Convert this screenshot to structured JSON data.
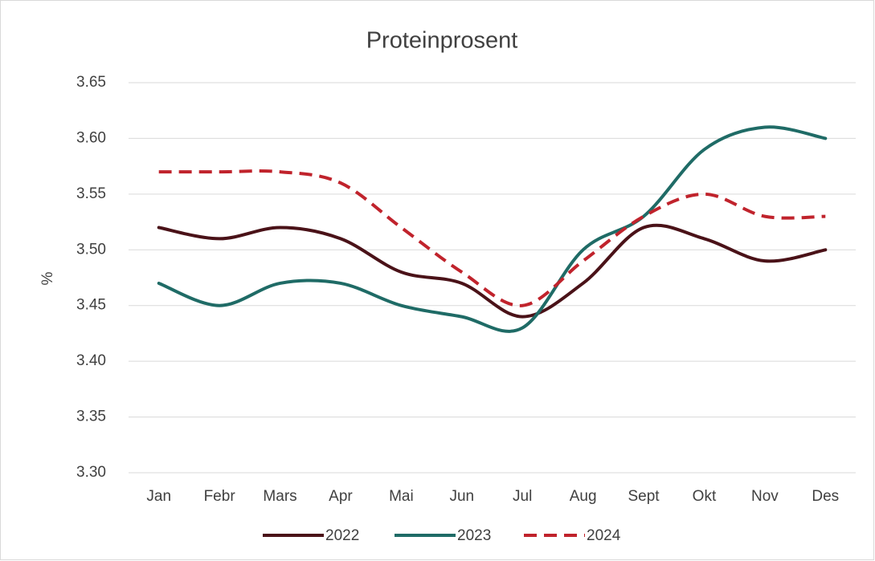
{
  "chart_data": {
    "type": "line",
    "title": "Proteinprosent",
    "y_label": "%",
    "categories": [
      "Jan",
      "Febr",
      "Mars",
      "Apr",
      "Mai",
      "Jun",
      "Jul",
      "Aug",
      "Sept",
      "Okt",
      "Nov",
      "Des"
    ],
    "series": [
      {
        "name": "2022",
        "color": "#4a1218",
        "dashed": false,
        "values": [
          3.52,
          3.51,
          3.52,
          3.51,
          3.48,
          3.47,
          3.44,
          3.47,
          3.52,
          3.51,
          3.49,
          3.5
        ]
      },
      {
        "name": "2023",
        "color": "#1f6b66",
        "dashed": false,
        "values": [
          3.47,
          3.45,
          3.47,
          3.47,
          3.45,
          3.44,
          3.43,
          3.5,
          3.53,
          3.59,
          3.61,
          3.6
        ]
      },
      {
        "name": "2024",
        "color": "#c0232c",
        "dashed": true,
        "values": [
          3.57,
          3.57,
          3.57,
          3.56,
          3.52,
          3.48,
          3.45,
          3.49,
          3.53,
          3.55,
          3.53,
          3.53
        ]
      }
    ],
    "ylim": [
      3.3,
      3.65
    ],
    "yticks": [
      {
        "value": 3.3,
        "label": "3.30"
      },
      3.35,
      {
        "value": 3.4,
        "label": "3.40"
      },
      3.45,
      {
        "value": 3.5,
        "label": "3.50"
      },
      3.55,
      {
        "value": 3.6,
        "label": "3.60"
      },
      3.65
    ],
    "grid": true,
    "smooth": true,
    "legend": "bottom"
  }
}
